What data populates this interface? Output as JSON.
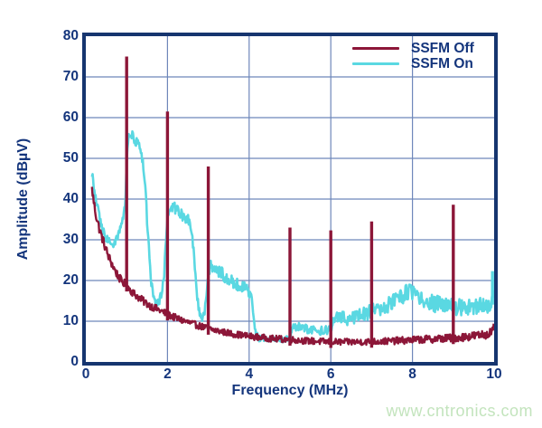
{
  "watermark": {
    "text": "www.cntronics.com",
    "color": "#c3e4bd"
  },
  "chart": {
    "colors": {
      "text": "#14357c",
      "grid": "#6e87ba",
      "border": "#16356f",
      "background": "#ffffff"
    }
  },
  "chart_data": {
    "type": "line",
    "title": "",
    "xlabel": "Frequency (MHz)",
    "ylabel": "Amplitude (dBµV)",
    "xlim": [
      0,
      10
    ],
    "ylim": [
      0,
      80
    ],
    "xticks": [
      0,
      2,
      4,
      6,
      8,
      10
    ],
    "yticks": [
      0,
      10,
      20,
      30,
      40,
      50,
      60,
      70,
      80
    ],
    "grid_x": [
      2,
      4,
      6,
      8
    ],
    "grid_y": [
      10,
      20,
      30,
      40,
      50,
      60,
      70
    ],
    "legend_position": "top-right",
    "draw_order": [
      1,
      0
    ],
    "series": [
      {
        "name": "SSFM Off",
        "color": "#8c1638",
        "width": 2.4,
        "base": [
          [
            0.15,
            42.5
          ],
          [
            0.2,
            39
          ],
          [
            0.25,
            36
          ],
          [
            0.3,
            34
          ],
          [
            0.35,
            32
          ],
          [
            0.4,
            30.5
          ],
          [
            0.45,
            29
          ],
          [
            0.5,
            27.5
          ],
          [
            0.55,
            26
          ],
          [
            0.6,
            25
          ],
          [
            0.65,
            23.8
          ],
          [
            0.7,
            22.8
          ],
          [
            0.75,
            21.8
          ],
          [
            0.8,
            21
          ],
          [
            0.85,
            20.2
          ],
          [
            0.9,
            19.6
          ],
          [
            1.0,
            18.8
          ],
          [
            1.1,
            17.6
          ],
          [
            1.2,
            16.6
          ],
          [
            1.3,
            15.8
          ],
          [
            1.4,
            15
          ],
          [
            1.5,
            14.3
          ],
          [
            1.6,
            13.7
          ],
          [
            1.7,
            13.2
          ],
          [
            1.8,
            12.7
          ],
          [
            1.9,
            12.2
          ],
          [
            2.0,
            11.7
          ],
          [
            2.2,
            10.8
          ],
          [
            2.4,
            10.1
          ],
          [
            2.6,
            9.4
          ],
          [
            2.8,
            8.8
          ],
          [
            3.0,
            8.2
          ],
          [
            3.2,
            7.7
          ],
          [
            3.4,
            7.3
          ],
          [
            3.6,
            6.9
          ],
          [
            3.8,
            6.6
          ],
          [
            4.0,
            6.3
          ],
          [
            4.3,
            6
          ],
          [
            4.6,
            5.7
          ],
          [
            5.0,
            5.5
          ],
          [
            5.4,
            5.2
          ],
          [
            5.8,
            5
          ],
          [
            6.2,
            4.9
          ],
          [
            6.6,
            4.9
          ],
          [
            7.0,
            5
          ],
          [
            7.4,
            5.1
          ],
          [
            7.8,
            5.3
          ],
          [
            8.2,
            5.5
          ],
          [
            8.6,
            5.7
          ],
          [
            9.0,
            5.9
          ],
          [
            9.3,
            6.2
          ],
          [
            9.6,
            6.5
          ],
          [
            9.8,
            6.8
          ],
          [
            9.95,
            7.5
          ],
          [
            10,
            8.5
          ]
        ],
        "noise_band": [
          [
            0.15,
            1.2
          ],
          [
            1,
            1
          ],
          [
            2,
            0.9
          ],
          [
            3,
            0.8
          ],
          [
            5,
            0.8
          ],
          [
            7,
            0.8
          ],
          [
            9,
            1
          ],
          [
            10,
            1.1
          ]
        ],
        "spikes": [
          [
            1,
            75
          ],
          [
            2,
            61.5
          ],
          [
            3,
            48
          ],
          [
            5,
            33
          ],
          [
            6,
            32.3
          ],
          [
            7,
            34.5
          ],
          [
            9,
            38.6
          ]
        ]
      },
      {
        "name": "SSFM On",
        "color": "#5ad8e2",
        "width": 2.6,
        "base": [
          [
            0.15,
            46.5
          ],
          [
            0.2,
            42.5
          ],
          [
            0.25,
            39.5
          ],
          [
            0.3,
            37
          ],
          [
            0.35,
            34.5
          ],
          [
            0.4,
            33
          ],
          [
            0.45,
            31.5
          ],
          [
            0.5,
            30.5
          ],
          [
            0.55,
            29.8
          ],
          [
            0.6,
            29.2
          ],
          [
            0.65,
            29
          ],
          [
            0.7,
            29.2
          ],
          [
            0.75,
            30
          ],
          [
            0.8,
            31.5
          ],
          [
            0.85,
            33.5
          ],
          [
            0.9,
            35.2
          ],
          [
            0.95,
            37.5
          ],
          [
            0.98,
            41
          ],
          [
            1.0,
            50
          ],
          [
            1.03,
            54.5
          ],
          [
            1.08,
            56
          ],
          [
            1.15,
            55.5
          ],
          [
            1.2,
            54.5
          ],
          [
            1.25,
            53.8
          ],
          [
            1.3,
            52.8
          ],
          [
            1.35,
            51
          ],
          [
            1.4,
            48.5
          ],
          [
            1.45,
            44
          ],
          [
            1.5,
            35
          ],
          [
            1.55,
            27
          ],
          [
            1.6,
            20
          ],
          [
            1.65,
            16
          ],
          [
            1.7,
            14.5
          ],
          [
            1.75,
            14.3
          ],
          [
            1.8,
            15
          ],
          [
            1.85,
            16.5
          ],
          [
            1.88,
            18
          ],
          [
            1.92,
            22
          ],
          [
            1.96,
            29
          ],
          [
            2.0,
            35.5
          ],
          [
            2.04,
            38.3
          ],
          [
            2.1,
            38.3
          ],
          [
            2.2,
            37.3
          ],
          [
            2.3,
            36.5
          ],
          [
            2.4,
            35.8
          ],
          [
            2.5,
            35.2
          ],
          [
            2.55,
            34.5
          ],
          [
            2.6,
            32
          ],
          [
            2.65,
            26
          ],
          [
            2.7,
            19
          ],
          [
            2.75,
            14
          ],
          [
            2.8,
            11.5
          ],
          [
            2.85,
            10.8
          ],
          [
            2.9,
            12
          ],
          [
            2.95,
            15.5
          ],
          [
            3.0,
            21.5
          ],
          [
            3.05,
            24
          ],
          [
            3.1,
            23.5
          ],
          [
            3.2,
            22.8
          ],
          [
            3.3,
            22
          ],
          [
            3.4,
            21.2
          ],
          [
            3.5,
            20.5
          ],
          [
            3.6,
            19.8
          ],
          [
            3.7,
            19.2
          ],
          [
            3.8,
            18.6
          ],
          [
            3.9,
            18
          ],
          [
            4.0,
            17
          ],
          [
            4.08,
            15
          ],
          [
            4.12,
            10
          ],
          [
            4.18,
            6.5
          ],
          [
            4.25,
            5.8
          ],
          [
            4.5,
            5.6
          ],
          [
            4.8,
            5.5
          ],
          [
            5.0,
            5.8
          ],
          [
            5.06,
            8
          ],
          [
            5.15,
            8.8
          ],
          [
            5.3,
            8.3
          ],
          [
            5.5,
            7.8
          ],
          [
            5.7,
            7.7
          ],
          [
            5.9,
            7.9
          ],
          [
            6.0,
            8.3
          ],
          [
            6.08,
            10.5
          ],
          [
            6.2,
            11
          ],
          [
            6.4,
            10.7
          ],
          [
            6.6,
            11.3
          ],
          [
            6.8,
            11.8
          ],
          [
            7.0,
            12.4
          ],
          [
            7.2,
            13.2
          ],
          [
            7.4,
            13.9
          ],
          [
            7.6,
            15.2
          ],
          [
            7.8,
            16.4
          ],
          [
            7.95,
            17.8
          ],
          [
            8.05,
            16.8
          ],
          [
            8.2,
            15.2
          ],
          [
            8.4,
            14.6
          ],
          [
            8.6,
            14.2
          ],
          [
            8.8,
            14
          ],
          [
            9.0,
            13.3
          ],
          [
            9.2,
            13.4
          ],
          [
            9.4,
            13.2
          ],
          [
            9.6,
            13.6
          ],
          [
            9.8,
            14
          ],
          [
            9.93,
            14.5
          ],
          [
            10,
            17
          ]
        ],
        "noise_band": [
          [
            0.15,
            1.3
          ],
          [
            0.6,
            1.2
          ],
          [
            0.95,
            1.1
          ],
          [
            1.1,
            1
          ],
          [
            1.45,
            1.4
          ],
          [
            1.7,
            0.9
          ],
          [
            1.95,
            1.4
          ],
          [
            2.1,
            1.6
          ],
          [
            2.55,
            1.4
          ],
          [
            2.8,
            1
          ],
          [
            3.0,
            1.6
          ],
          [
            3.9,
            1.6
          ],
          [
            4.1,
            1
          ],
          [
            4.3,
            0.7
          ],
          [
            4.9,
            0.7
          ],
          [
            5.1,
            1.1
          ],
          [
            5.9,
            1.1
          ],
          [
            6.15,
            1.7
          ],
          [
            7,
            1.8
          ],
          [
            7.6,
            2
          ],
          [
            8,
            2.2
          ],
          [
            8.4,
            2.1
          ],
          [
            9.5,
            2.1
          ],
          [
            10,
            2.3
          ]
        ],
        "spikes": [
          [
            9.96,
            22.3
          ]
        ]
      }
    ]
  }
}
